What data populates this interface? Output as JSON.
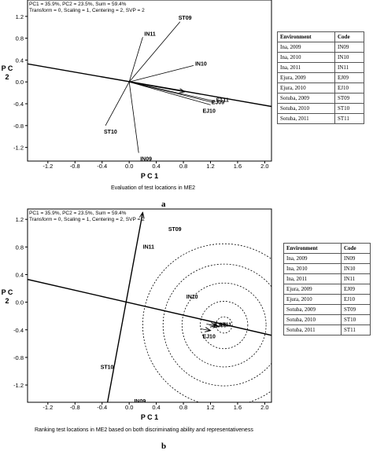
{
  "panels": [
    {
      "letter": "a",
      "caption": "Evaluation of test locations in ME2",
      "header_line1": "PC1 = 35.9%, PC2 = 23.5%, Sum = 59.4%",
      "header_line2": "Transform = 0, Scaling = 1, Centering = 2, SVP = 2",
      "xlabel": "P C 1",
      "ylabel": "P C\n2",
      "x_ticks": [
        "-1.2",
        "-0.8",
        "-0.4",
        "0.0",
        "0.4",
        "0.8",
        "1.2",
        "1.6",
        "2.0"
      ],
      "y_ticks": [
        "1.2",
        "0.8",
        "0.4",
        "0.0",
        "-0.4",
        "-0.8",
        "-1.2"
      ],
      "table": {
        "headers": [
          "Environment",
          "Code"
        ],
        "rows": [
          [
            "Ina, 2009",
            "IN09"
          ],
          [
            "Ina, 2010",
            "IN10"
          ],
          [
            "Ina, 2011",
            "IN11"
          ],
          [
            "Ejura, 2009",
            "EJ09"
          ],
          [
            "Ejura, 2010",
            "EJ10"
          ],
          [
            "Sotuba, 2009",
            "ST09"
          ],
          [
            "Sotuba, 2010",
            "ST10"
          ],
          [
            "Sotuba, 2011",
            "ST11"
          ]
        ]
      }
    },
    {
      "letter": "b",
      "caption": "Ranking test locations in ME2 based on both discriminating ability and representativeness",
      "header_line1": "PC1 = 35.9%, PC2 = 23.5%, Sum = 59.4%",
      "header_line2": "Transform = 0, Scaling = 1, Centering = 2, SVP = 2",
      "xlabel": "P C 1",
      "ylabel": "P C\n2",
      "x_ticks": [
        "-1.2",
        "-0.8",
        "-0.4",
        "0.0",
        "0.4",
        "0.8",
        "1.2",
        "1.6",
        "2.0"
      ],
      "y_ticks": [
        "1.2",
        "0.8",
        "0.4",
        "0.0",
        "-0.4",
        "-0.8",
        "-1.2"
      ],
      "table": {
        "headers": [
          "Environment",
          "Code"
        ],
        "rows": [
          [
            "Ina, 2009",
            "IN09"
          ],
          [
            "Ina, 2010",
            "IN10"
          ],
          [
            "Ina, 2011",
            "IN11"
          ],
          [
            "Ejura, 2009",
            "EJ09"
          ],
          [
            "Ejura, 2010",
            "EJ10"
          ],
          [
            "Sotuba, 2009",
            "ST09"
          ],
          [
            "Sotuba, 2010",
            "ST10"
          ],
          [
            "Sotuba, 2011",
            "ST11"
          ]
        ]
      }
    }
  ],
  "chart_data": [
    {
      "type": "scatter",
      "title": "Evaluation of test locations in ME2",
      "xlabel": "PC 1",
      "ylabel": "PC 2",
      "xlim": [
        -1.5,
        2.1
      ],
      "ylim": [
        -1.45,
        1.5
      ],
      "points": [
        {
          "label": "ST09",
          "x": 0.75,
          "y": 1.1
        },
        {
          "label": "IN11",
          "x": 0.2,
          "y": 0.82
        },
        {
          "label": "IN10",
          "x": 0.95,
          "y": 0.3
        },
        {
          "label": "IN09",
          "x": 0.14,
          "y": -1.3
        },
        {
          "label": "ST10",
          "x": -0.35,
          "y": -0.8
        },
        {
          "label": "EJ10",
          "x": 1.2,
          "y": -0.42
        },
        {
          "label": "EJ09",
          "x": 1.25,
          "y": -0.38
        },
        {
          "label": "ST11",
          "x": 1.28,
          "y": -0.36
        }
      ],
      "average_environment_axis": {
        "x1": -1.5,
        "y1": 0.33,
        "x2": 2.1,
        "y2": -0.45
      },
      "axis_arrow_to": {
        "x": 0.82,
        "y": -0.18
      },
      "grid": false
    },
    {
      "type": "scatter",
      "title": "Ranking test locations in ME2 based on both discriminating ability and representativeness",
      "xlabel": "PC 1",
      "ylabel": "PC 2",
      "xlim": [
        -1.5,
        2.1
      ],
      "ylim": [
        -1.45,
        1.35
      ],
      "points": [
        {
          "label": "ST09",
          "x": 0.6,
          "y": 1.0
        },
        {
          "label": "IN11",
          "x": 0.18,
          "y": 0.75
        },
        {
          "label": "IN10",
          "x": 0.82,
          "y": 0.05
        },
        {
          "label": "IN09",
          "x": 0.05,
          "y": -1.35
        },
        {
          "label": "ST10",
          "x": -0.4,
          "y": -0.85
        },
        {
          "label": "EJ10",
          "x": 1.2,
          "y": -0.41
        },
        {
          "label": "EJ09",
          "x": 1.28,
          "y": -0.34
        },
        {
          "label": "ST11",
          "x": 1.32,
          "y": -0.35
        }
      ],
      "average_environment_axis": {
        "x1": -1.5,
        "y1": 0.33,
        "x2": 2.1,
        "y2": -0.48
      },
      "ideal_point": {
        "x": 1.4,
        "y": -0.33
      },
      "concentric_radii": [
        0.12,
        0.35,
        0.62,
        0.9,
        1.2
      ],
      "perpendicular_axis": {
        "x1": -0.32,
        "y1": -1.45,
        "x2": 0.2,
        "y2": 1.3
      },
      "grid": false
    }
  ]
}
